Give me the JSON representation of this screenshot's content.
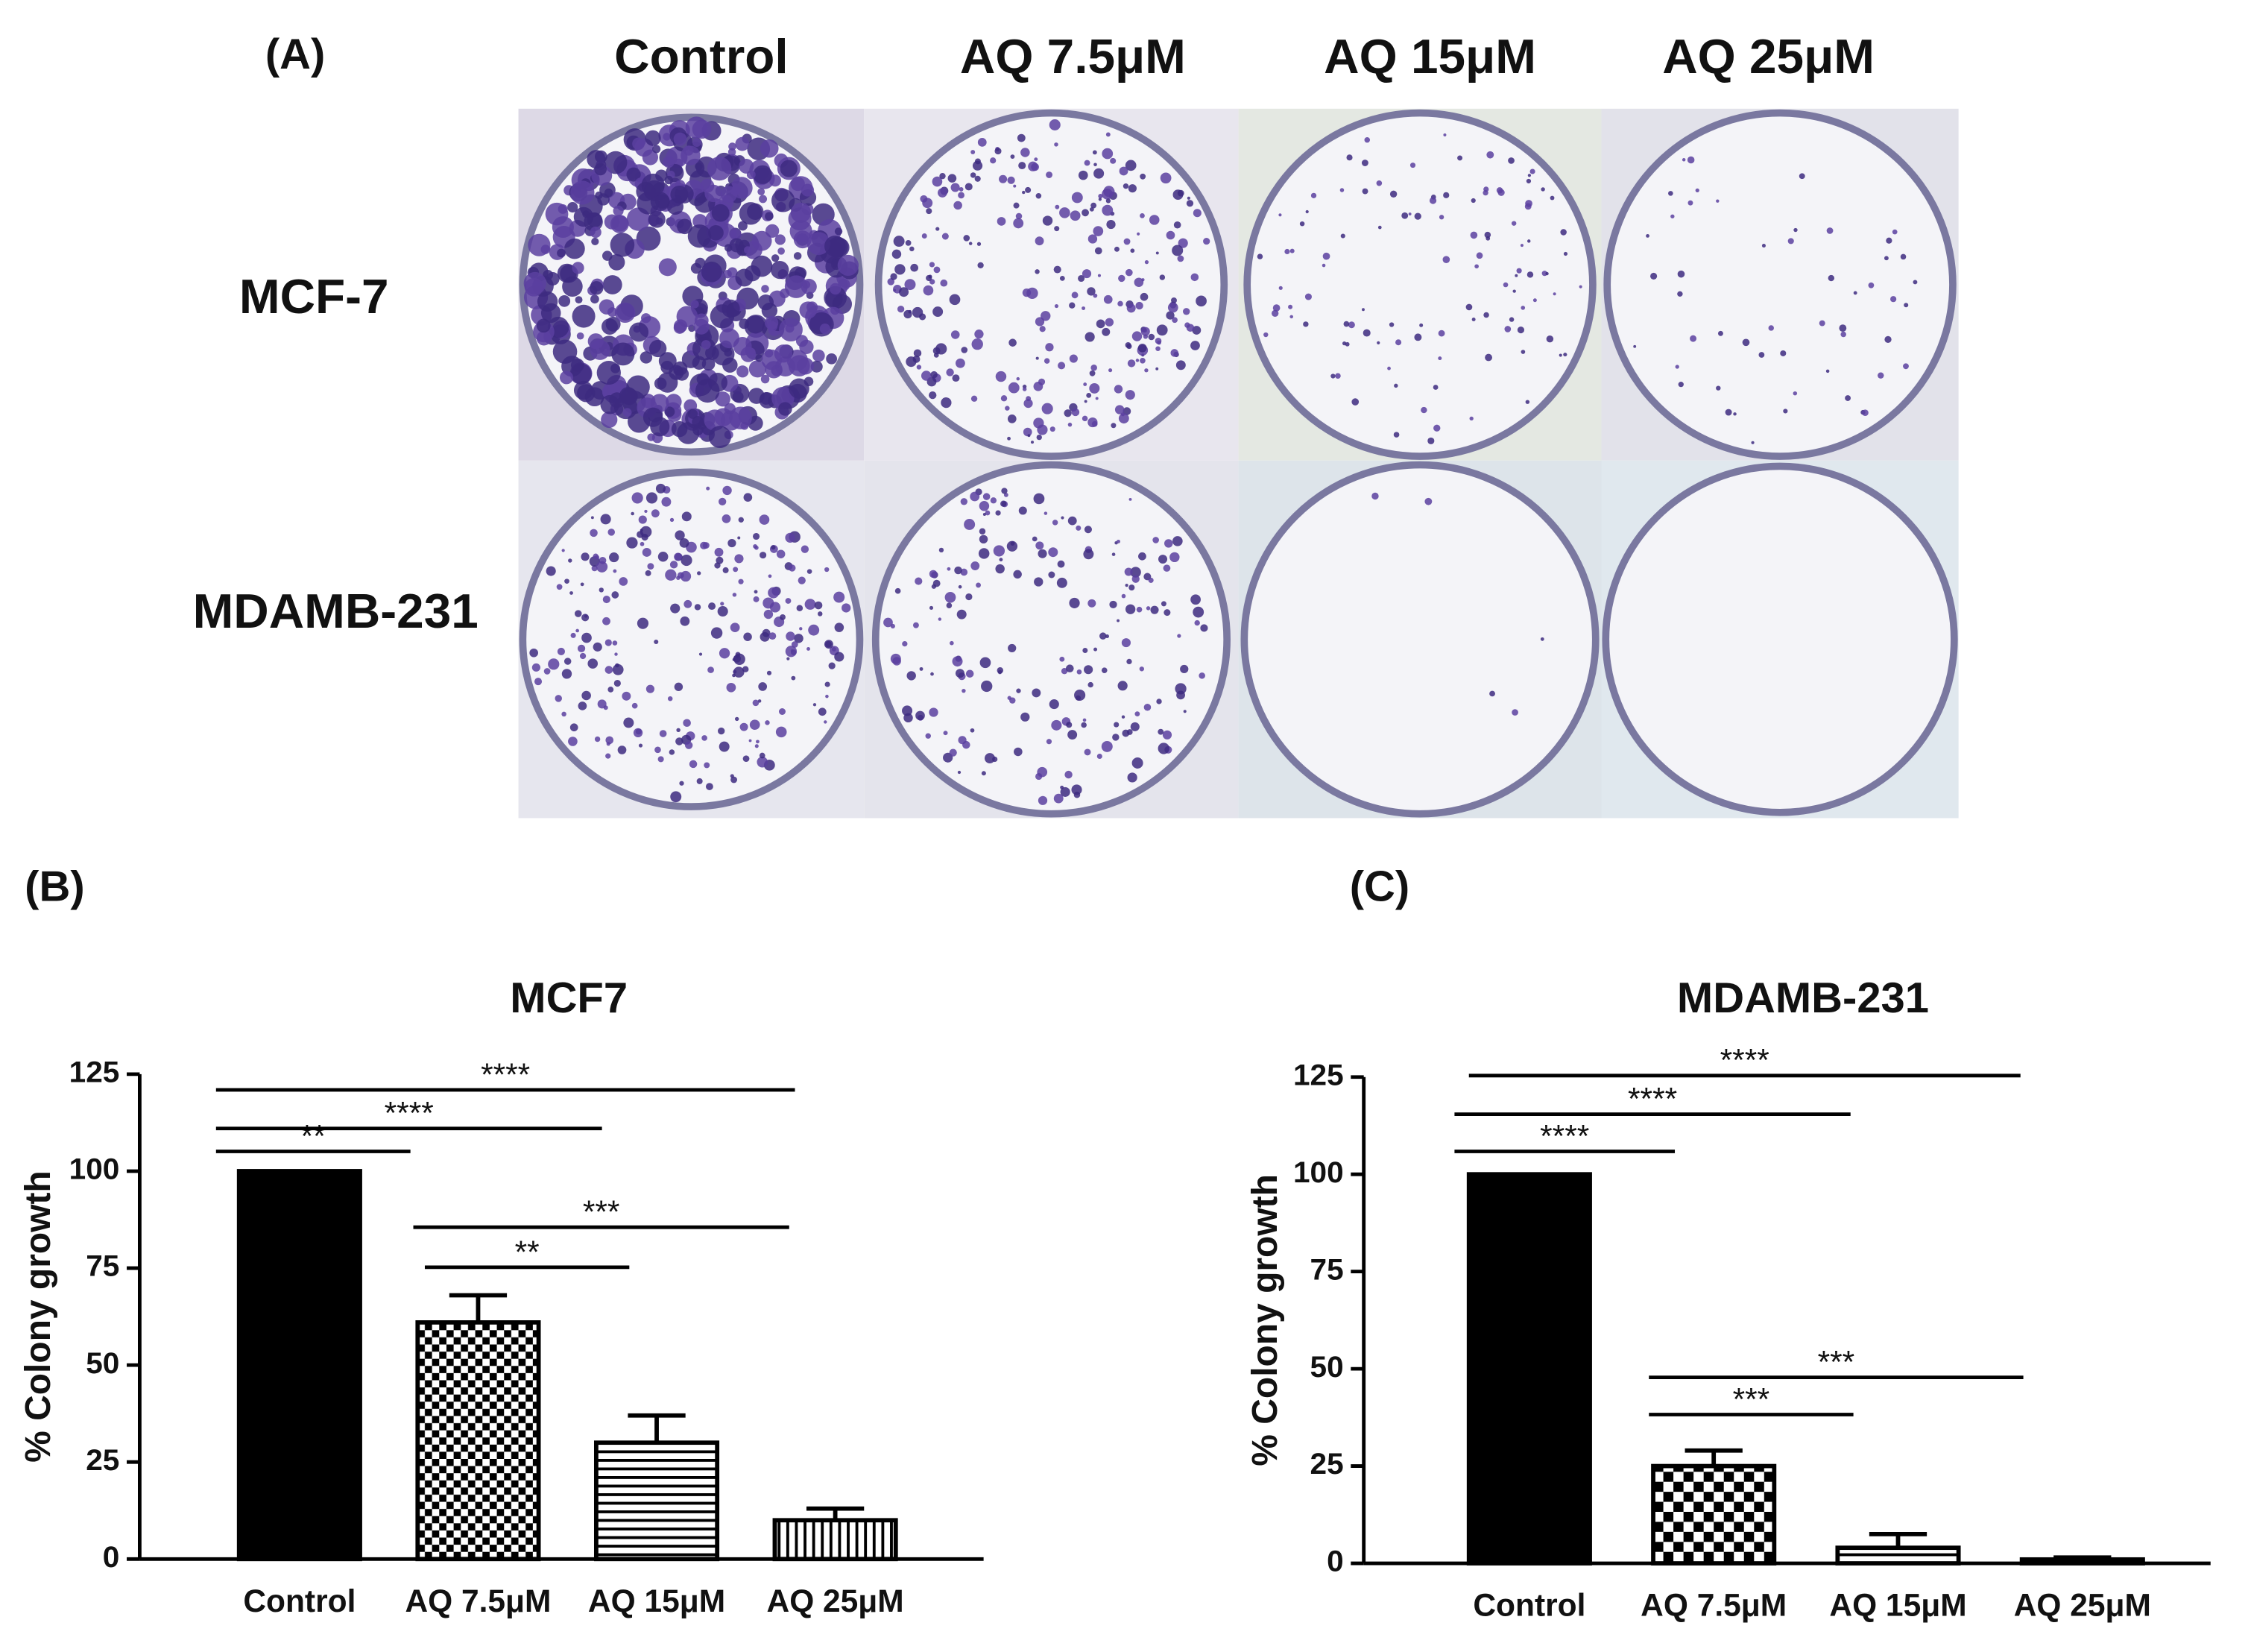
{
  "panel_a": {
    "label": "(A)",
    "columns": [
      "Control",
      "AQ 7.5μM",
      "AQ 15μM",
      "AQ 25μM"
    ],
    "rows": [
      "MCF-7",
      "MDAMB-231"
    ]
  },
  "chart_data": [
    {
      "type": "bar",
      "panel": "(B)",
      "title": "MCF7",
      "y_label": "% Colony growth",
      "categories": [
        "Control",
        "AQ 7.5μM",
        "AQ 15μM",
        "AQ 25μM"
      ],
      "values": [
        100,
        61,
        30,
        10
      ],
      "errors": [
        0,
        7,
        7,
        3
      ],
      "patterns": [
        "solid",
        "checker",
        "horizontal",
        "vertical"
      ],
      "color": "#000000",
      "ylim": [
        0,
        125
      ],
      "yticks": [
        0,
        25,
        50,
        75,
        100,
        125
      ],
      "annotations": [
        {
          "text": "**",
          "between": [
            0,
            1
          ]
        },
        {
          "text": "****",
          "between": [
            0,
            2
          ]
        },
        {
          "text": "****",
          "between": [
            0,
            3
          ]
        },
        {
          "text": "***",
          "between": [
            1,
            3
          ]
        },
        {
          "text": "**",
          "between": [
            1,
            2
          ]
        }
      ]
    },
    {
      "type": "bar",
      "panel": "(C)",
      "title": "MDAMB-231",
      "y_label": "% Colony growth",
      "categories": [
        "Control",
        "AQ 7.5μM",
        "AQ 15μM",
        "AQ 25μM"
      ],
      "values": [
        100,
        25,
        4,
        1
      ],
      "errors": [
        0,
        4,
        3.5,
        0.5
      ],
      "patterns": [
        "solid",
        "checker",
        "horizontal",
        "vertical"
      ],
      "color": "#000000",
      "ylim": [
        0,
        125
      ],
      "yticks": [
        0,
        25,
        50,
        75,
        100,
        125
      ],
      "annotations": [
        {
          "text": "****",
          "between": [
            0,
            1
          ]
        },
        {
          "text": "****",
          "between": [
            0,
            2
          ]
        },
        {
          "text": "****",
          "between": [
            0,
            3
          ]
        },
        {
          "text": "***",
          "between": [
            1,
            2
          ]
        },
        {
          "text": "***",
          "between": [
            1,
            3
          ]
        }
      ]
    }
  ]
}
